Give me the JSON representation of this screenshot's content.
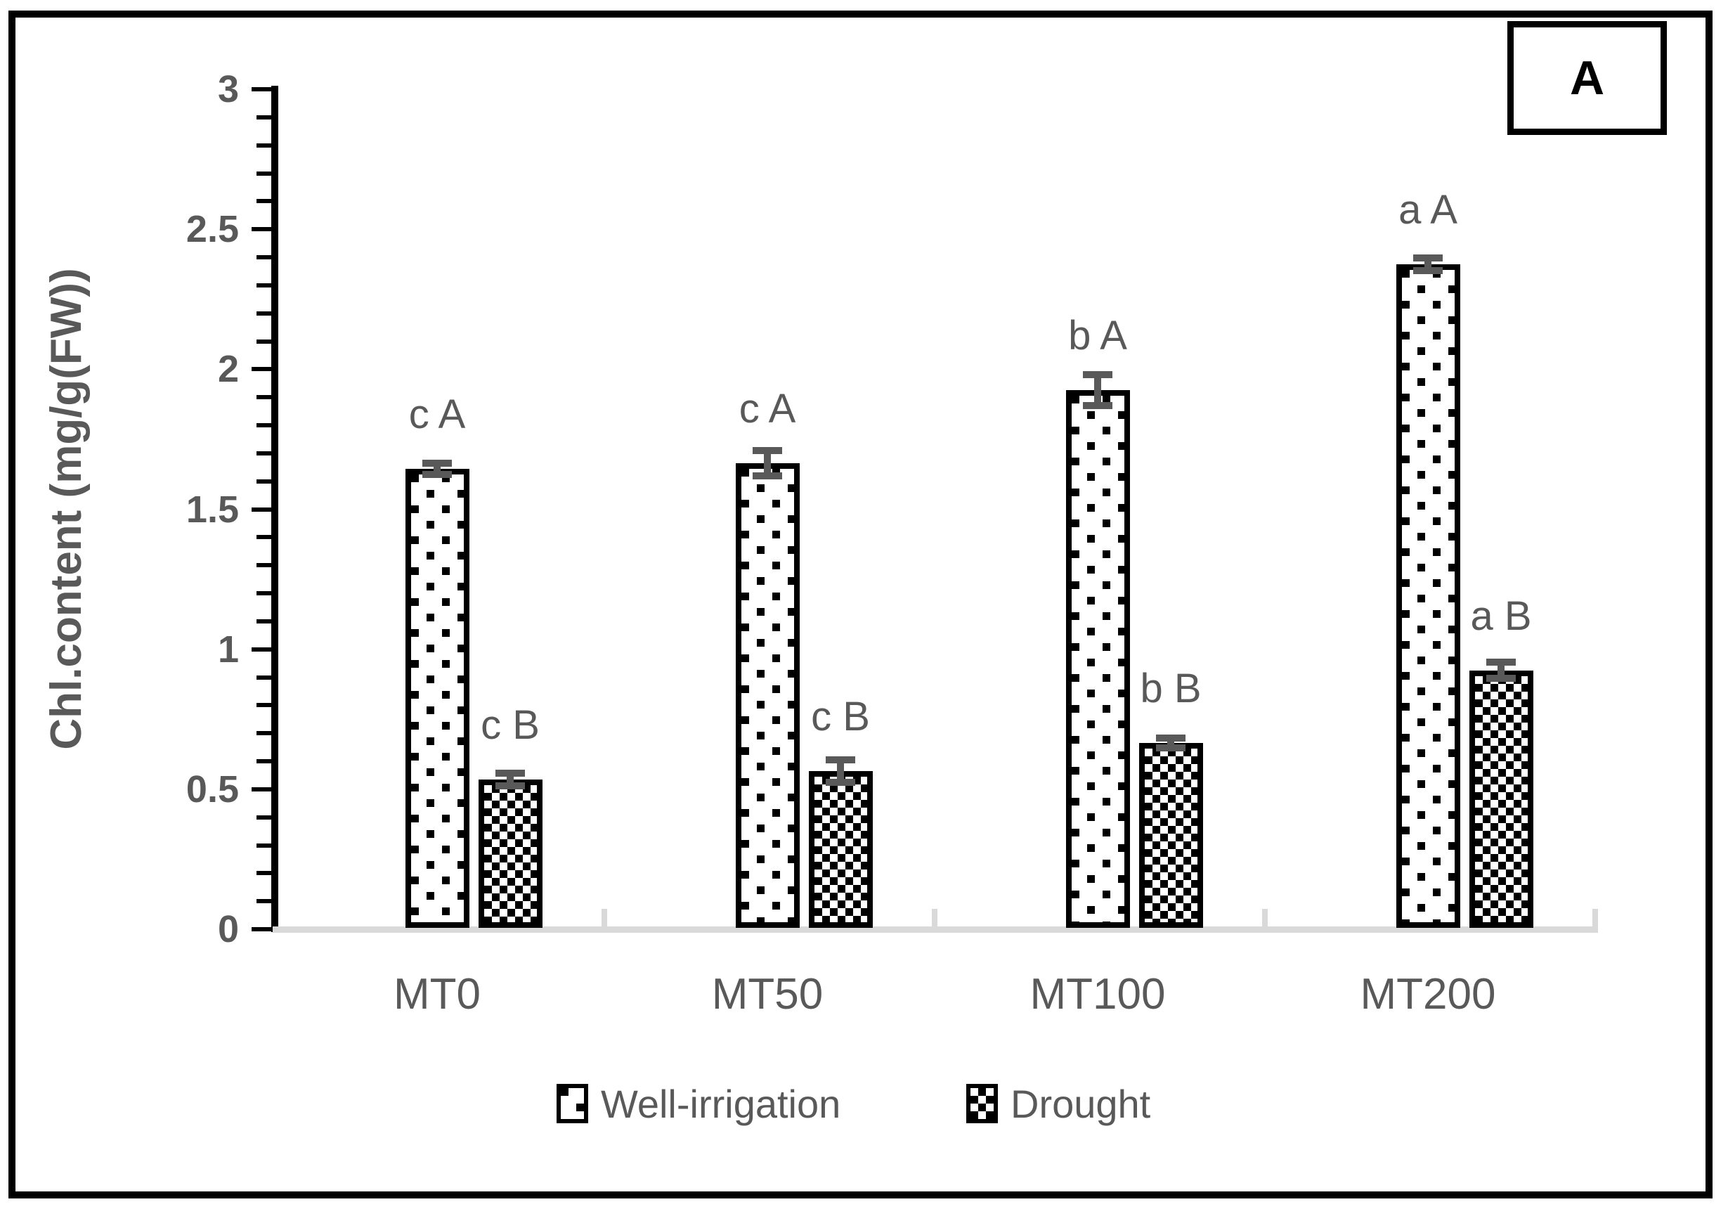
{
  "panel_label": "A",
  "y_axis": {
    "title": "Chl.content (mg/g(FW))",
    "tick_labels": [
      "0",
      "0.5",
      "1",
      "1.5",
      "2",
      "2.5",
      "3"
    ],
    "min": 0,
    "max": 3,
    "major_step": 0.5,
    "minor_step": 0.1
  },
  "chart_data": {
    "type": "bar",
    "title": "",
    "xlabel": "",
    "ylabel": "Chl.content (mg/g(FW))",
    "ylim": [
      0,
      3
    ],
    "grid": false,
    "legend_position": "bottom",
    "categories": [
      "MT0",
      "MT50",
      "MT100",
      "MT200"
    ],
    "series": [
      {
        "name": "Well-irrigation",
        "pattern": "dots",
        "values": [
          1.64,
          1.66,
          1.92,
          2.37
        ],
        "errors": [
          0.02,
          0.045,
          0.055,
          0.022
        ],
        "stat_labels": [
          "c A",
          "c A",
          "b A",
          "a A"
        ]
      },
      {
        "name": "Drought",
        "pattern": "checker",
        "values": [
          0.53,
          0.56,
          0.66,
          0.92
        ],
        "errors": [
          0.022,
          0.04,
          0.018,
          0.028
        ],
        "stat_labels": [
          "c B",
          "c B",
          "b B",
          "a B"
        ]
      }
    ]
  },
  "legend": {
    "items": [
      {
        "label": "Well-irrigation",
        "pattern": "dots"
      },
      {
        "label": "Drought",
        "pattern": "checker"
      }
    ]
  },
  "colors": {
    "text_gray": "#595959",
    "axis_black": "#000000",
    "baseline_gray": "#d9d9d9",
    "error_bar_gray": "#595959",
    "background": "#ffffff"
  }
}
